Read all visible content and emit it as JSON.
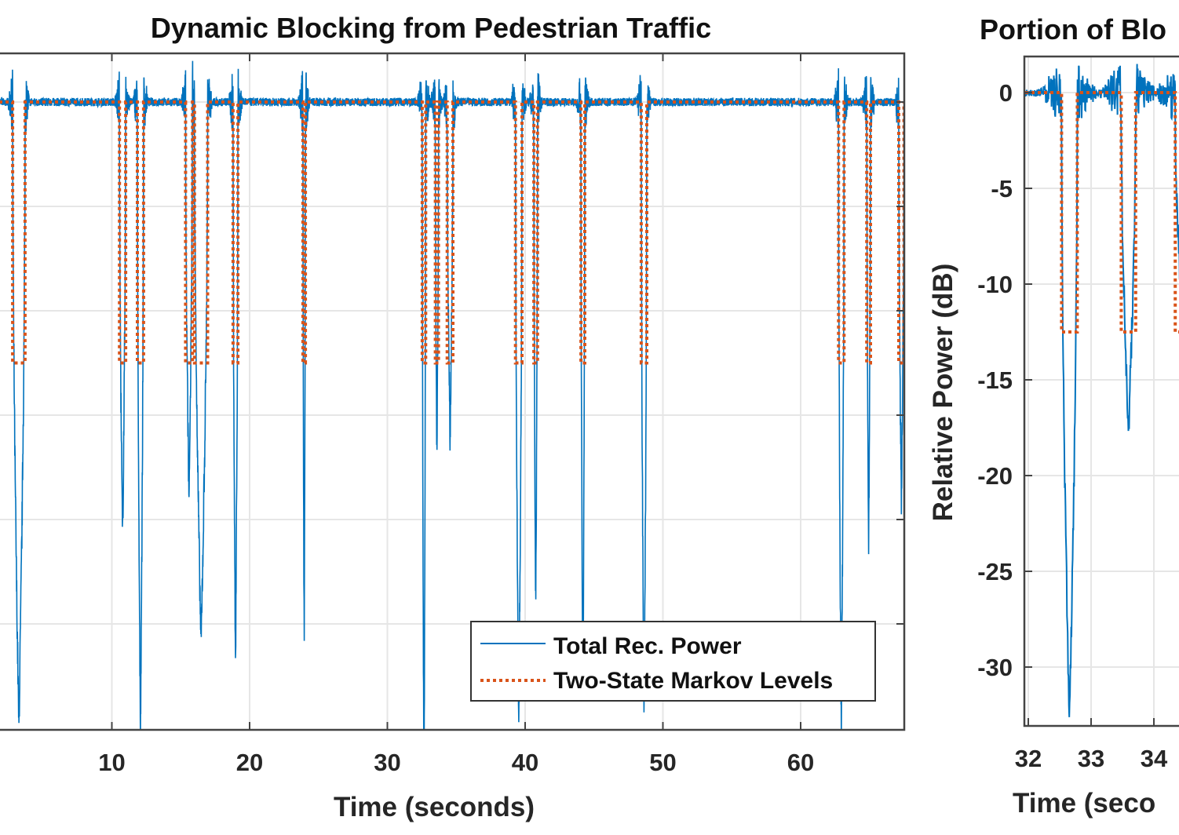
{
  "chart_data": [
    {
      "type": "line",
      "title": "Dynamic Blocking from Pedestrian Traffic",
      "xlabel": "Time (seconds)",
      "ylabel": "",
      "xlim": [
        0,
        67.5
      ],
      "ylim": [
        -30,
        2.3
      ],
      "xticks": [
        10,
        20,
        30,
        40,
        50,
        60
      ],
      "yticks_grid": [
        0,
        -5,
        -10,
        -15,
        -20,
        -25
      ],
      "grid": true,
      "legend": {
        "placement": "bottom-right",
        "entries": [
          "Total Rec. Power",
          "Two-State Markov Levels"
        ]
      },
      "markov_levels": [
        0,
        -12.5
      ],
      "series": [
        {
          "name": "Total Rec. Power",
          "style": "solid",
          "color": "#0072BD",
          "blocking_events": [
            {
              "start": 2.8,
              "end": 3.7,
              "min": -30
            },
            {
              "start": 10.55,
              "end": 11.0,
              "min": -21
            },
            {
              "start": 11.85,
              "end": 12.3,
              "min": -30
            },
            {
              "start": 15.35,
              "end": 15.85,
              "min": -19
            },
            {
              "start": 16.0,
              "end": 16.95,
              "min": -26
            },
            {
              "start": 18.8,
              "end": 19.15,
              "min": -27
            },
            {
              "start": 23.87,
              "end": 24.05,
              "min": -25.5
            },
            {
              "start": 32.53,
              "end": 32.78,
              "min": -33
            },
            {
              "start": 33.48,
              "end": 33.71,
              "min": -17.5
            },
            {
              "start": 34.34,
              "end": 34.76,
              "min": -16
            },
            {
              "start": 39.3,
              "end": 39.77,
              "min": -30
            },
            {
              "start": 40.63,
              "end": 40.9,
              "min": -24
            },
            {
              "start": 44.05,
              "end": 44.33,
              "min": -29
            },
            {
              "start": 48.43,
              "end": 48.83,
              "min": -30
            },
            {
              "start": 62.75,
              "end": 63.15,
              "min": -30
            },
            {
              "start": 64.8,
              "end": 65.07,
              "min": -21
            },
            {
              "start": 67.12,
              "end": 67.5,
              "min": -19
            }
          ]
        },
        {
          "name": "Two-State Markov Levels",
          "style": "dotted",
          "color": "#D95319"
        }
      ]
    },
    {
      "type": "line",
      "title": "Portion of Blo",
      "xlabel": "Time (seco",
      "ylabel": "Relative Power (dB)",
      "xlim": [
        31.95,
        34.5
      ],
      "ylim": [
        -33,
        2
      ],
      "xticks": [
        32,
        33,
        34
      ],
      "yticks": [
        0,
        -5,
        -10,
        -15,
        -20,
        -25,
        -30
      ],
      "grid": true
    }
  ],
  "colors": {
    "power": "#0072BD",
    "markov": "#D95319",
    "grid": "#e6e6e6",
    "axis": "#444444"
  }
}
